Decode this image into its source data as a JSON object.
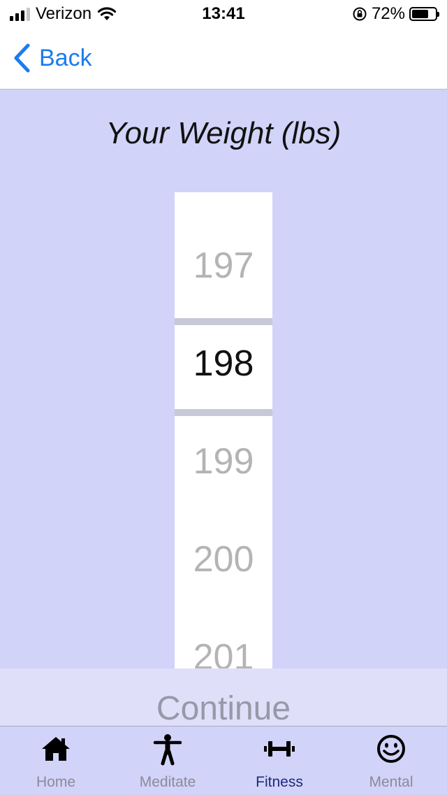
{
  "status_bar": {
    "carrier": "Verizon",
    "time": "13:41",
    "battery_percent": "72%",
    "battery_level": 0.72,
    "icons": [
      "signal-icon",
      "wifi-icon",
      "rotation-lock-icon",
      "battery-icon"
    ]
  },
  "nav": {
    "back_label": "Back",
    "back_icon": "chevron-left-icon"
  },
  "page": {
    "title": "Your Weight (lbs)"
  },
  "picker": {
    "selected_value": "198",
    "items": [
      "197",
      "198",
      "199",
      "200",
      "201"
    ]
  },
  "continue": {
    "label": "Continue"
  },
  "tabs": [
    {
      "label": "Home",
      "icon": "home-icon",
      "active": false
    },
    {
      "label": "Meditate",
      "icon": "person-icon",
      "active": false
    },
    {
      "label": "Fitness",
      "icon": "dumbbell-icon",
      "active": true
    },
    {
      "label": "Mental",
      "icon": "smiley-icon",
      "active": false
    }
  ],
  "colors": {
    "accent": "#1a7cf0",
    "background": "#d2d3f8",
    "active_tab": "#1b2a7a",
    "inactive_tab": "#8a8a9a"
  }
}
